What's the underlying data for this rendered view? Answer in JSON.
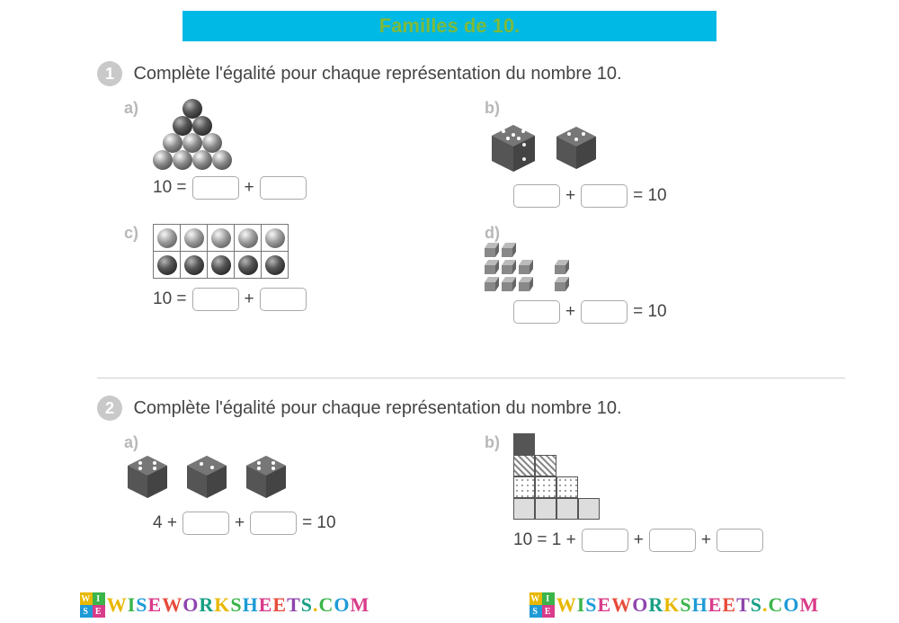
{
  "header": {
    "title": "Familles de 10."
  },
  "ex1": {
    "num": "1",
    "prompt": "Complète l'égalité pour chaque représentation du nombre 10.",
    "a": {
      "label": "a)",
      "eq_pre": "10 =",
      "eq_mid": "+"
    },
    "b": {
      "label": "b)",
      "eq_mid": "+",
      "eq_post": "= 10"
    },
    "c": {
      "label": "c)",
      "eq_pre": "10 =",
      "eq_mid": "+"
    },
    "d": {
      "label": "d)",
      "eq_mid": "+",
      "eq_post": "= 10"
    }
  },
  "ex2": {
    "num": "2",
    "prompt": "Complète l'égalité pour chaque représentation du nombre 10.",
    "a": {
      "label": "a)",
      "eq_pre": "4 +",
      "eq_mid": "+",
      "eq_post": "= 10"
    },
    "b": {
      "label": "b)",
      "eq_pre": "10 = 1 +",
      "eq_mid1": "+",
      "eq_mid2": "+"
    }
  },
  "watermark": {
    "text": "WISEWORKSHEETS.COM",
    "logo": [
      "W",
      "I",
      "S",
      "E"
    ],
    "colors": [
      "#e8b800",
      "#3bb54a",
      "#1e9bd6",
      "#d93c8a",
      "#e74c3c",
      "#8e44ad",
      "#16a085"
    ]
  },
  "style": {
    "header_bg": "#00b9e4",
    "header_text": "#7cba3d",
    "badge_bg": "#c9c9c9",
    "label_gray": "#b8b8b8",
    "blank_border": "#aaaaaa",
    "text": "#444444"
  }
}
